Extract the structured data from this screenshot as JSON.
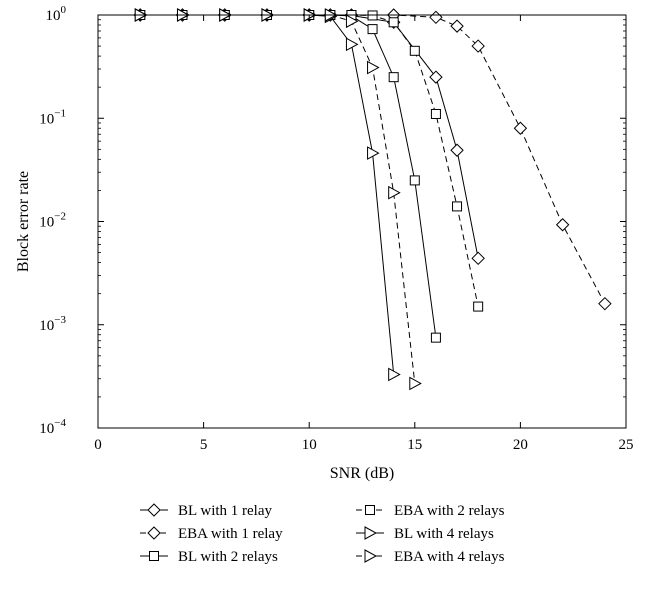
{
  "chart_data": {
    "type": "line",
    "title": "",
    "xlabel": "SNR (dB)",
    "ylabel": "Block error rate",
    "xlim": [
      0,
      25
    ],
    "ylim": [
      0.0001,
      1
    ],
    "yscale": "log",
    "grid": false,
    "legend_position": "bottom, below plot, two columns",
    "x_ticks": [
      0,
      5,
      10,
      15,
      20,
      25
    ],
    "x_tick_labels": [
      "0",
      "5",
      "10",
      "15",
      "20",
      "25"
    ],
    "y_ticks": [
      1,
      0.1,
      0.01,
      0.001,
      0.0001
    ],
    "y_tick_labels": [
      {
        "base": "10",
        "exp": "0"
      },
      {
        "base": "10",
        "exp": "−1"
      },
      {
        "base": "10",
        "exp": "−2"
      },
      {
        "base": "10",
        "exp": "−3"
      },
      {
        "base": "10",
        "exp": "−4"
      }
    ],
    "series": [
      {
        "name": "BL with 1 relay",
        "line": "solid",
        "marker": "diamond",
        "x": [
          2,
          4,
          6,
          8,
          10,
          11,
          12,
          14,
          16,
          17,
          18
        ],
        "y": [
          1,
          1,
          1,
          1,
          1,
          1,
          0.99,
          0.85,
          0.25,
          0.049,
          0.0044
        ]
      },
      {
        "name": "EBA with 1 relay",
        "line": "dashed",
        "marker": "diamond",
        "x": [
          2,
          4,
          6,
          8,
          10,
          11,
          12,
          14,
          16,
          17,
          18,
          20,
          22,
          24
        ],
        "y": [
          1,
          1,
          1,
          1,
          1,
          1,
          1,
          1,
          0.95,
          0.78,
          0.5,
          0.08,
          0.0093,
          0.0016
        ]
      },
      {
        "name": "BL with 2 relays",
        "line": "solid",
        "marker": "square",
        "x": [
          2,
          4,
          6,
          8,
          10,
          11,
          12,
          13,
          14,
          15,
          16
        ],
        "y": [
          1,
          1,
          1,
          1,
          1,
          1,
          0.98,
          0.73,
          0.25,
          0.025,
          0.00075
        ]
      },
      {
        "name": "EBA with 2 relays",
        "line": "dashed",
        "marker": "square",
        "x": [
          2,
          4,
          6,
          8,
          10,
          11,
          12,
          13,
          14,
          15,
          16,
          17,
          18
        ],
        "y": [
          1,
          1,
          1,
          1,
          1,
          1,
          1,
          0.99,
          0.85,
          0.45,
          0.11,
          0.014,
          0.0015
        ]
      },
      {
        "name": "BL with 4 relays",
        "line": "solid",
        "marker": "triangle-right",
        "x": [
          2,
          4,
          6,
          8,
          10,
          11,
          12,
          13,
          14
        ],
        "y": [
          1,
          1,
          1,
          1,
          1,
          0.97,
          0.52,
          0.046,
          0.00033
        ]
      },
      {
        "name": "EBA with 4 relays",
        "line": "dashed",
        "marker": "triangle-right",
        "x": [
          2,
          4,
          6,
          8,
          10,
          11,
          12,
          13,
          14,
          15
        ],
        "y": [
          1,
          1,
          1,
          1,
          1,
          1,
          0.87,
          0.31,
          0.019,
          0.00027
        ]
      }
    ]
  }
}
